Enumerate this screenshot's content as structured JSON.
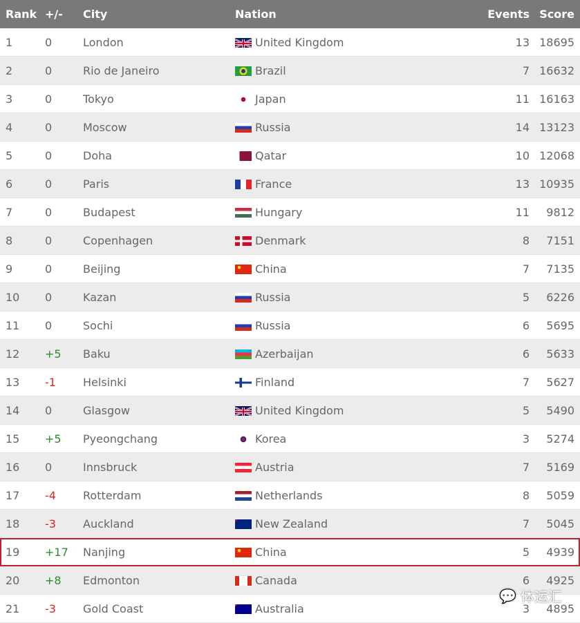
{
  "header": {
    "rank": "Rank",
    "change": "+/-",
    "city": "City",
    "nation": "Nation",
    "events": "Events",
    "score": "Score"
  },
  "colors": {
    "header_bg": "#7a7879",
    "positive": "#2e8b2e",
    "negative": "#d9262b",
    "highlight_border": "#b8232b"
  },
  "highlighted_rank": "19",
  "rows": [
    {
      "rank": "1",
      "change": "0",
      "city": "London",
      "nation": "United Kingdom",
      "flag": "gb",
      "events": "13",
      "score": "18695"
    },
    {
      "rank": "2",
      "change": "0",
      "city": "Rio de Janeiro",
      "nation": "Brazil",
      "flag": "br",
      "events": "7",
      "score": "16632"
    },
    {
      "rank": "3",
      "change": "0",
      "city": "Tokyo",
      "nation": "Japan",
      "flag": "jp",
      "events": "11",
      "score": "16163"
    },
    {
      "rank": "4",
      "change": "0",
      "city": "Moscow",
      "nation": "Russia",
      "flag": "ru",
      "events": "14",
      "score": "13123"
    },
    {
      "rank": "5",
      "change": "0",
      "city": "Doha",
      "nation": "Qatar",
      "flag": "qa",
      "events": "10",
      "score": "12068"
    },
    {
      "rank": "6",
      "change": "0",
      "city": "Paris",
      "nation": "France",
      "flag": "fr",
      "events": "13",
      "score": "10935"
    },
    {
      "rank": "7",
      "change": "0",
      "city": "Budapest",
      "nation": "Hungary",
      "flag": "hu",
      "events": "11",
      "score": "9812"
    },
    {
      "rank": "8",
      "change": "0",
      "city": "Copenhagen",
      "nation": "Denmark",
      "flag": "dk",
      "events": "8",
      "score": "7151"
    },
    {
      "rank": "9",
      "change": "0",
      "city": "Beijing",
      "nation": "China",
      "flag": "cn",
      "events": "7",
      "score": "7135"
    },
    {
      "rank": "10",
      "change": "0",
      "city": "Kazan",
      "nation": "Russia",
      "flag": "ru",
      "events": "5",
      "score": "6226"
    },
    {
      "rank": "11",
      "change": "0",
      "city": "Sochi",
      "nation": "Russia",
      "flag": "ru",
      "events": "6",
      "score": "5695"
    },
    {
      "rank": "12",
      "change": "+5",
      "city": "Baku",
      "nation": "Azerbaijan",
      "flag": "az",
      "events": "6",
      "score": "5633"
    },
    {
      "rank": "13",
      "change": "-1",
      "city": "Helsinki",
      "nation": "Finland",
      "flag": "fi",
      "events": "7",
      "score": "5627"
    },
    {
      "rank": "14",
      "change": "0",
      "city": "Glasgow",
      "nation": "United Kingdom",
      "flag": "gb",
      "events": "5",
      "score": "5490"
    },
    {
      "rank": "15",
      "change": "+5",
      "city": "Pyeongchang",
      "nation": "Korea",
      "flag": "kr",
      "events": "3",
      "score": "5274"
    },
    {
      "rank": "16",
      "change": "0",
      "city": "Innsbruck",
      "nation": "Austria",
      "flag": "at",
      "events": "7",
      "score": "5169"
    },
    {
      "rank": "17",
      "change": "-4",
      "city": "Rotterdam",
      "nation": "Netherlands",
      "flag": "nl",
      "events": "8",
      "score": "5059"
    },
    {
      "rank": "18",
      "change": "-3",
      "city": "Auckland",
      "nation": "New Zealand",
      "flag": "nz",
      "events": "7",
      "score": "5045"
    },
    {
      "rank": "19",
      "change": "+17",
      "city": "Nanjing",
      "nation": "China",
      "flag": "cn",
      "events": "5",
      "score": "4939"
    },
    {
      "rank": "20",
      "change": "+8",
      "city": "Edmonton",
      "nation": "Canada",
      "flag": "ca",
      "events": "6",
      "score": "4925"
    },
    {
      "rank": "21",
      "change": "-3",
      "city": "Gold Coast",
      "nation": "Australia",
      "flag": "au",
      "events": "3",
      "score": "4895"
    }
  ],
  "watermark": {
    "text": "体运汇",
    "icon": "wechat-icon"
  }
}
